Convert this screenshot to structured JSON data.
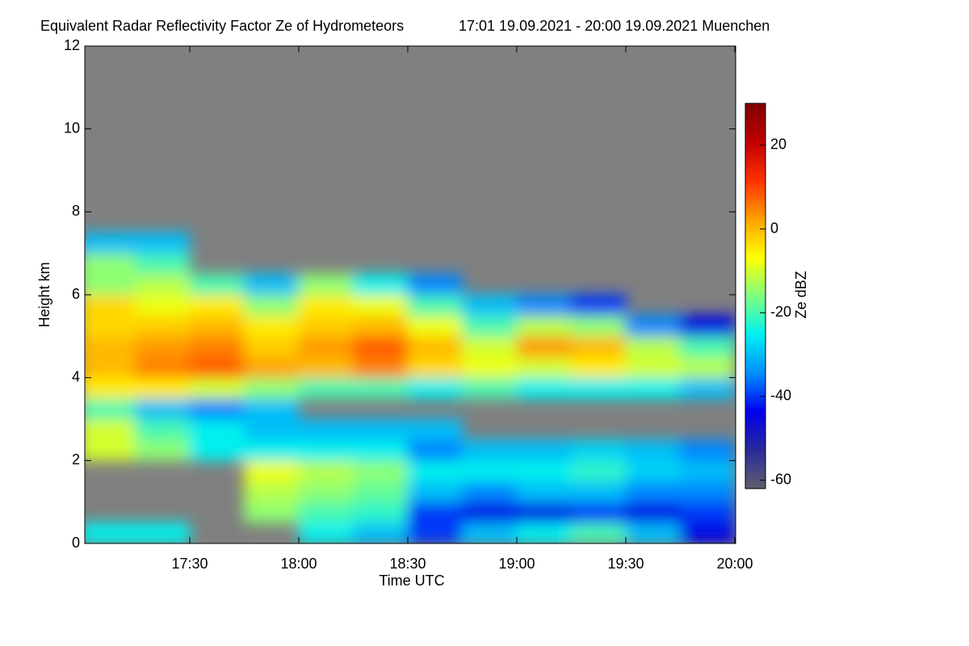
{
  "chart_data": {
    "type": "heatmap",
    "title": "Equivalent Radar Reflectivity Factor Ze of Hydrometeors",
    "subtitle": "17:01 19.09.2021 - 20:00 19.09.2021 Muenchen",
    "x_label": "Time UTC",
    "y_label": "Height km",
    "colorbar_label": "Ze dBZ",
    "background": "#808080",
    "colormap": [
      "#5f5f6e",
      "#2a2a9a",
      "#0000f0",
      "#0090ff",
      "#00f0f0",
      "#80ff80",
      "#ffff00",
      "#ffa000",
      "#ff3000",
      "#c00000",
      "#800000"
    ],
    "xlim": [
      17.0167,
      20.0
    ],
    "xticks": [
      {
        "value": 17.5,
        "label": "17:30"
      },
      {
        "value": 18.0,
        "label": "18:00"
      },
      {
        "value": 18.5,
        "label": "18:30"
      },
      {
        "value": 19.0,
        "label": "19:00"
      },
      {
        "value": 19.5,
        "label": "19:30"
      },
      {
        "value": 20.0,
        "label": "20:00"
      }
    ],
    "ylim": [
      0,
      12
    ],
    "yticks": [
      0,
      2,
      4,
      6,
      8,
      10,
      12
    ],
    "clim": [
      -62,
      30
    ],
    "cticks": [
      -60,
      -40,
      -20,
      0,
      20
    ],
    "x": [
      17.125,
      17.375,
      17.625,
      17.875,
      18.125,
      18.375,
      18.625,
      18.875,
      19.125,
      19.375,
      19.625,
      19.875
    ],
    "y": [
      0.25,
      0.75,
      1.25,
      1.75,
      2.25,
      2.75,
      3.25,
      3.75,
      4.25,
      4.75,
      5.25,
      5.75,
      6.25,
      6.75,
      7.25,
      7.75,
      8.25,
      8.75,
      9.25,
      9.75,
      10.25,
      10.75,
      11.25,
      11.75
    ],
    "z": [
      [
        -25,
        -25,
        null,
        null,
        -25,
        -30,
        -40,
        -30,
        -25,
        -20,
        -30,
        -45
      ],
      [
        null,
        null,
        null,
        -15,
        -20,
        -22,
        -40,
        -45,
        -45,
        -40,
        -45,
        -40
      ],
      [
        null,
        null,
        null,
        -12,
        -15,
        -18,
        -30,
        -35,
        -30,
        -30,
        -35,
        -35
      ],
      [
        null,
        null,
        null,
        -8,
        -12,
        -15,
        -25,
        -25,
        -25,
        -22,
        -28,
        -30
      ],
      [
        -10,
        -15,
        -25,
        -25,
        -25,
        -25,
        -35,
        -30,
        -30,
        -28,
        -30,
        -35
      ],
      [
        -10,
        -20,
        -25,
        -30,
        -30,
        -30,
        -30,
        null,
        null,
        null,
        null,
        null
      ],
      [
        -20,
        -30,
        -35,
        -30,
        null,
        null,
        null,
        null,
        null,
        null,
        null,
        null
      ],
      [
        -5,
        -5,
        -10,
        -15,
        -20,
        -20,
        -25,
        -20,
        -25,
        -25,
        -25,
        -30
      ],
      [
        0,
        5,
        8,
        2,
        0,
        5,
        -3,
        -8,
        -10,
        -5,
        -10,
        -12
      ],
      [
        0,
        3,
        5,
        -2,
        3,
        8,
        0,
        -10,
        3,
        0,
        -12,
        -20
      ],
      [
        -3,
        -2,
        0,
        -5,
        -2,
        0,
        -8,
        -20,
        -12,
        -15,
        -35,
        -45
      ],
      [
        -3,
        -8,
        -5,
        -15,
        -5,
        -8,
        -20,
        -30,
        -35,
        -40,
        null,
        null
      ],
      [
        -15,
        -12,
        -20,
        -30,
        -15,
        -25,
        -35,
        null,
        null,
        null,
        null,
        null
      ],
      [
        -15,
        -20,
        null,
        null,
        null,
        null,
        null,
        null,
        null,
        null,
        null,
        null
      ],
      [
        -30,
        -30,
        null,
        null,
        null,
        null,
        null,
        null,
        null,
        null,
        null,
        null
      ],
      [
        null,
        null,
        null,
        null,
        null,
        null,
        null,
        null,
        null,
        null,
        null,
        null
      ],
      [
        null,
        null,
        null,
        null,
        null,
        null,
        null,
        null,
        null,
        null,
        null,
        null
      ],
      [
        null,
        null,
        null,
        null,
        null,
        null,
        null,
        null,
        null,
        null,
        null,
        null
      ],
      [
        null,
        null,
        null,
        null,
        null,
        null,
        null,
        null,
        null,
        null,
        null,
        null
      ],
      [
        null,
        null,
        null,
        null,
        null,
        null,
        null,
        null,
        null,
        null,
        null,
        null
      ],
      [
        null,
        null,
        null,
        null,
        null,
        null,
        null,
        null,
        null,
        null,
        null,
        null
      ],
      [
        null,
        null,
        null,
        null,
        null,
        null,
        null,
        null,
        null,
        null,
        null,
        null
      ],
      [
        null,
        null,
        null,
        null,
        null,
        null,
        null,
        null,
        null,
        null,
        null,
        null
      ],
      [
        null,
        null,
        null,
        null,
        null,
        null,
        null,
        null,
        null,
        null,
        null,
        null
      ]
    ]
  }
}
